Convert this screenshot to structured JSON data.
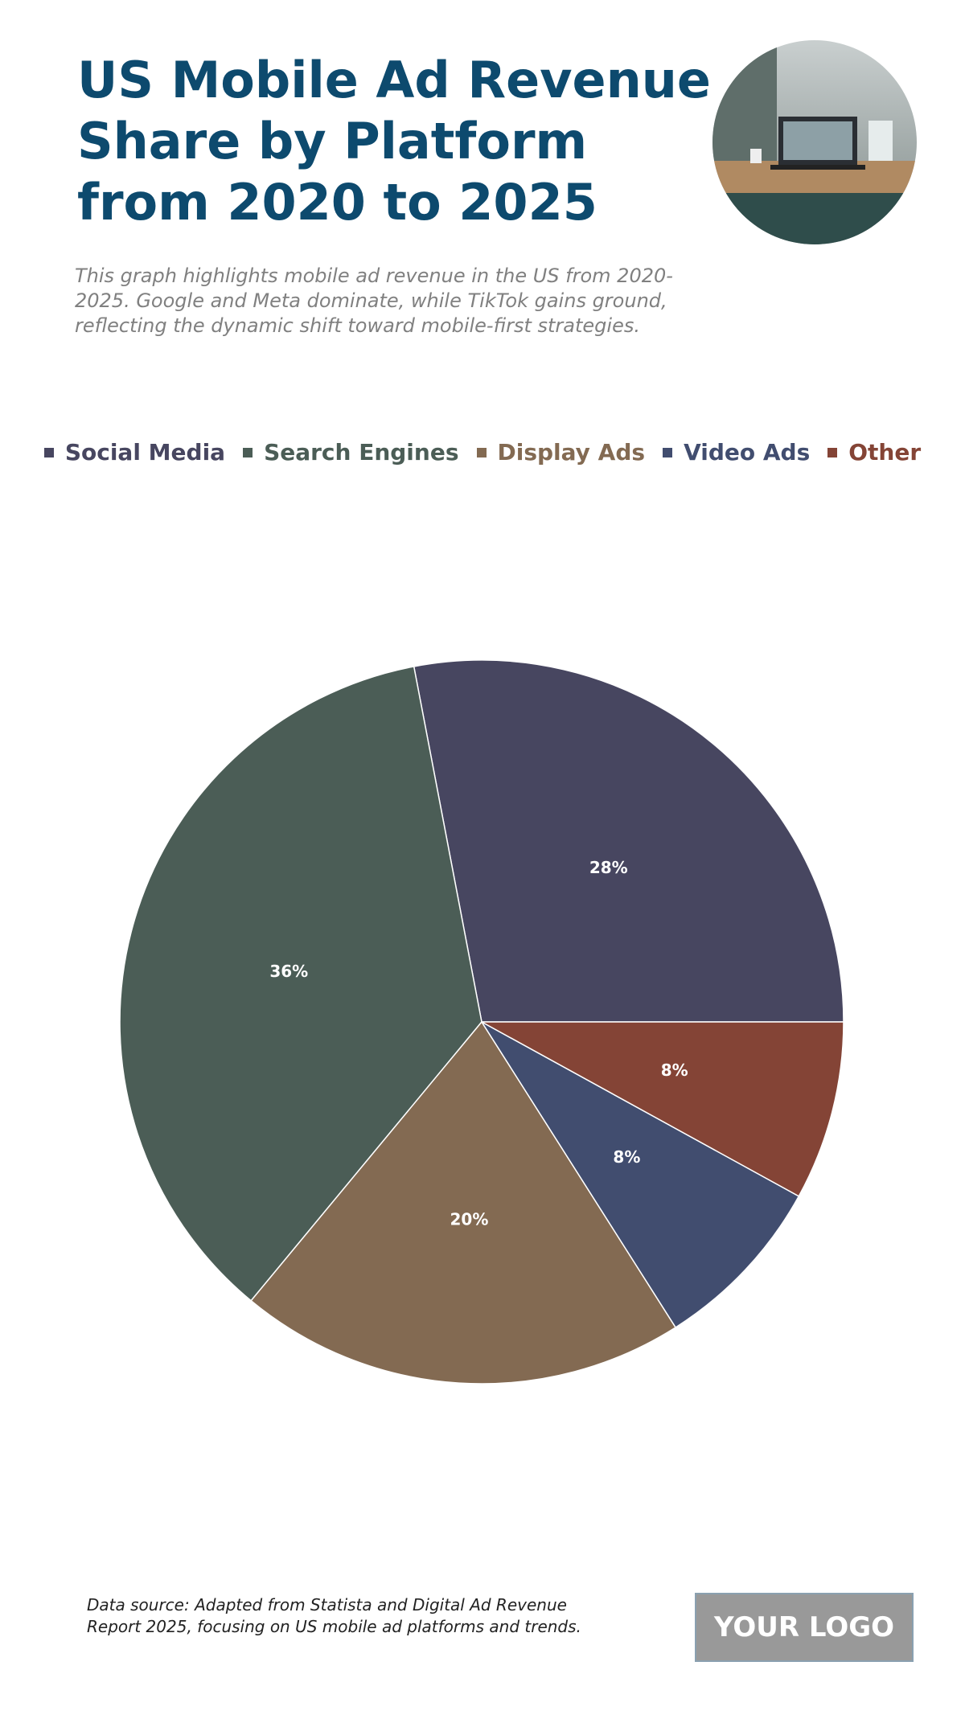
{
  "chart_data": {
    "type": "pie",
    "title": "US Mobile Ad Revenue Share by Platform from 2020 to 2025",
    "subtitle": "This graph highlights mobile ad revenue in the US from 2020-2025. Google and Meta dominate, while TikTok gains ground, reflecting the dynamic shift toward mobile-first strategies.",
    "categories": [
      "Social Media",
      "Search Engines",
      "Display Ads",
      "Video Ads",
      "Other"
    ],
    "values": [
      28,
      36,
      20,
      8,
      8
    ],
    "value_labels": [
      "28%",
      "36%",
      "20%",
      "8%",
      "8%"
    ],
    "colors": [
      "#474660",
      "#4b5d56",
      "#836a52",
      "#414d6f",
      "#844436"
    ],
    "legend": "top"
  },
  "footer": {
    "source": "Data source: Adapted from Statista and Digital Ad Revenue Report 2025, focusing on US mobile ad platforms and trends.",
    "logo": "YOUR LOGO"
  }
}
